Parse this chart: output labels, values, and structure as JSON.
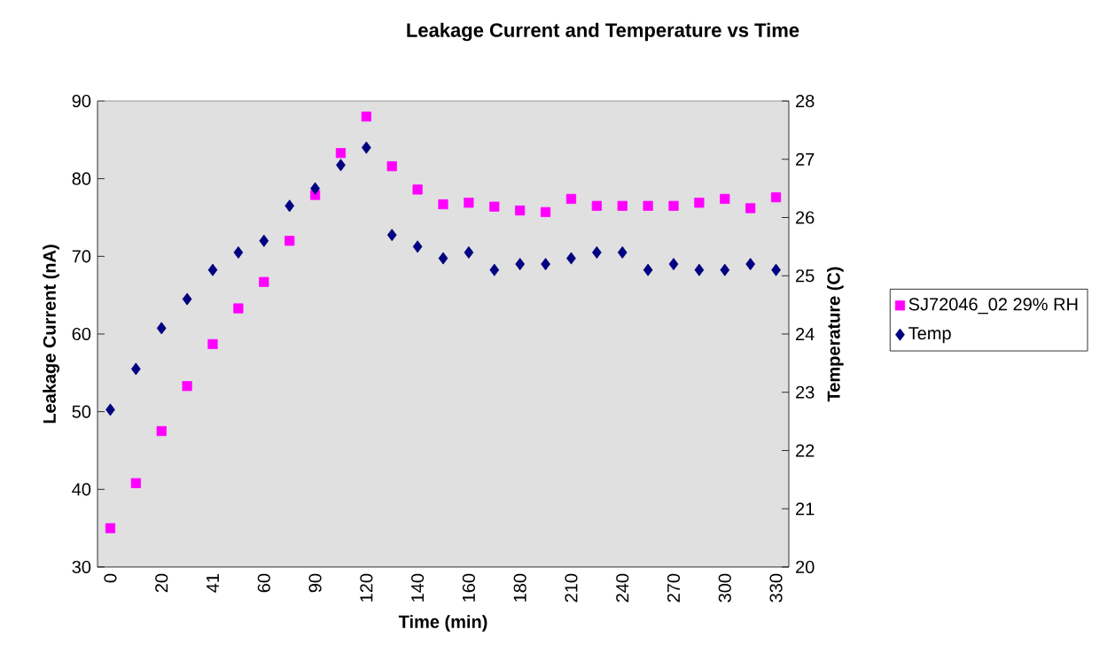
{
  "chart_data": {
    "type": "scatter",
    "title": "Leakage Current and Temperature vs Time",
    "xlabel": "Time (min)",
    "ylabel": "Leakage Current (nA)",
    "y2label": "Temperature (C)",
    "categories": [
      "0",
      null,
      "20",
      null,
      "41",
      null,
      "60",
      null,
      "90",
      null,
      "120",
      null,
      "140",
      null,
      "160",
      null,
      "180",
      null,
      "210",
      null,
      "240",
      null,
      "270",
      null,
      "300",
      null,
      "330"
    ],
    "series": [
      {
        "name": "SJ72046_02  29% RH",
        "color": "#ff00ff",
        "marker": "square",
        "values": [
          35.0,
          40.8,
          47.5,
          53.3,
          58.7,
          63.3,
          66.7,
          72.0,
          77.9,
          83.3,
          88.0,
          81.6,
          78.6,
          76.7,
          76.9,
          76.4,
          75.9,
          75.7,
          77.4,
          76.5,
          76.5,
          76.5,
          76.5,
          76.9,
          77.4,
          76.2,
          77.6
        ]
      },
      {
        "name": "Temp",
        "color": "#000080",
        "marker": "diamond",
        "axis": "y2",
        "values": [
          22.7,
          23.4,
          24.1,
          24.6,
          25.1,
          25.4,
          25.6,
          26.2,
          26.5,
          26.9,
          27.2,
          25.7,
          25.5,
          25.3,
          25.4,
          25.1,
          25.2,
          25.2,
          25.3,
          25.4,
          25.4,
          25.1,
          25.2,
          25.1,
          25.1,
          25.2,
          25.1
        ]
      }
    ],
    "ylim": [
      30,
      90
    ],
    "yticks": [
      30,
      40,
      50,
      60,
      70,
      80,
      90
    ],
    "y2lim": [
      20,
      28
    ],
    "y2ticks": [
      20,
      21,
      22,
      23,
      24,
      25,
      26,
      27,
      28
    ],
    "legend": "right"
  }
}
